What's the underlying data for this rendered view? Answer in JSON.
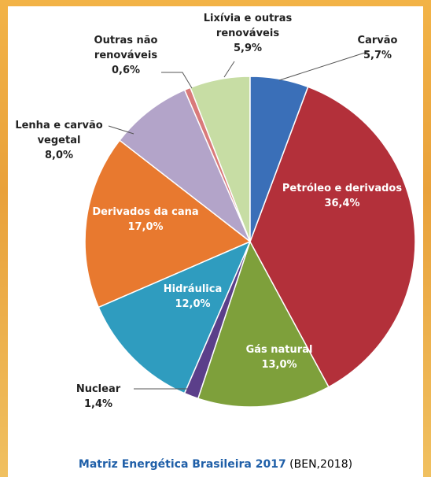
{
  "chart_data": {
    "type": "pie",
    "title": "Matriz Energética Brasileira 2017",
    "source": "(BEN,2018)",
    "categories": [
      "Carvão",
      "Petróleo e derivados",
      "Gás natural",
      "Nuclear",
      "Hidráulica",
      "Derivados da cana",
      "Lenha e carvão vegetal",
      "Outras não renováveis",
      "Lixívia e outras renováveis"
    ],
    "values": [
      5.7,
      36.4,
      13.0,
      1.4,
      12.0,
      17.0,
      8.0,
      0.6,
      5.9
    ],
    "value_labels": [
      "5,7%",
      "36,4%",
      "13,0%",
      "1,4%",
      "12,0%",
      "17,0%",
      "8,0%",
      "0,6%",
      "5,9%"
    ],
    "colors": [
      "#3a6fb8",
      "#b3303a",
      "#7ea03b",
      "#5b3f8a",
      "#2f9cbf",
      "#e8792f",
      "#b3a4c9",
      "#d97a7a",
      "#c7dda4"
    ]
  }
}
